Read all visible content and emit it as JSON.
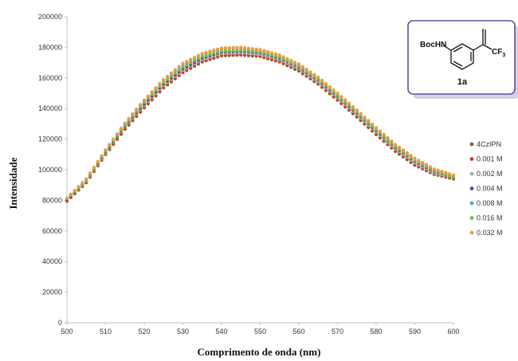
{
  "chart_data": {
    "type": "scatter",
    "xlabel": "Comprimento de onda (nm)",
    "ylabel": "Intensidade",
    "xlim": [
      500,
      600
    ],
    "ylim": [
      0,
      200000
    ],
    "x_ticks": [
      500,
      510,
      520,
      530,
      540,
      550,
      560,
      570,
      580,
      590,
      600
    ],
    "y_ticks": [
      0,
      20000,
      40000,
      60000,
      80000,
      100000,
      120000,
      140000,
      160000,
      180000,
      200000
    ],
    "x_step": 1,
    "grid": false,
    "legend_position": "right",
    "series": [
      {
        "name": "4CzIPN",
        "color": "#7a6a2a",
        "x": [
          500,
          505,
          510,
          515,
          520,
          525,
          530,
          535,
          540,
          545,
          550,
          555,
          560,
          565,
          570,
          575,
          580,
          585,
          590,
          595,
          600
        ],
        "values": [
          79500,
          91500,
          110000,
          126500,
          140500,
          153500,
          163500,
          170500,
          174500,
          175000,
          174000,
          170500,
          164500,
          156000,
          145500,
          134500,
          123000,
          112000,
          103000,
          97000,
          94000
        ]
      },
      {
        "name": "0.001 M",
        "color": "#cc3a1f",
        "x": [
          500,
          505,
          510,
          515,
          520,
          525,
          530,
          535,
          540,
          545,
          550,
          555,
          560,
          565,
          570,
          575,
          580,
          585,
          590,
          595,
          600
        ],
        "values": [
          80000,
          92000,
          110500,
          127000,
          141000,
          154000,
          164000,
          171000,
          175000,
          175500,
          174500,
          171000,
          165000,
          156500,
          146000,
          135000,
          123500,
          112500,
          103500,
          97500,
          94500
        ]
      },
      {
        "name": "0.002 M",
        "color": "#a9a9a9",
        "x": [
          500,
          505,
          510,
          515,
          520,
          525,
          530,
          535,
          540,
          545,
          550,
          555,
          560,
          565,
          570,
          575,
          580,
          585,
          590,
          595,
          600
        ],
        "values": [
          80500,
          92500,
          111000,
          128000,
          142000,
          155000,
          165000,
          172000,
          176000,
          176500,
          175500,
          172000,
          166000,
          157500,
          147000,
          136000,
          124500,
          113500,
          104500,
          98000,
          95000
        ]
      },
      {
        "name": "0.004 M",
        "color": "#6b3f8f",
        "x": [
          500,
          505,
          510,
          515,
          520,
          525,
          530,
          535,
          540,
          545,
          550,
          555,
          560,
          565,
          570,
          575,
          580,
          585,
          590,
          595,
          600
        ],
        "values": [
          80500,
          93000,
          111500,
          128500,
          143000,
          156000,
          166000,
          173000,
          177000,
          177500,
          176500,
          173000,
          167000,
          158500,
          148000,
          137000,
          125500,
          114500,
          105500,
          99000,
          95500
        ]
      },
      {
        "name": "0.008 M",
        "color": "#5aa0d8",
        "x": [
          500,
          505,
          510,
          515,
          520,
          525,
          530,
          535,
          540,
          545,
          550,
          555,
          560,
          565,
          570,
          575,
          580,
          585,
          590,
          595,
          600
        ],
        "values": [
          81000,
          93500,
          112500,
          130000,
          145000,
          158500,
          168500,
          175500,
          179000,
          179500,
          178000,
          174500,
          168500,
          160000,
          149500,
          138500,
          127000,
          116000,
          107000,
          100000,
          96000
        ]
      },
      {
        "name": "0.016 M",
        "color": "#6dbd45",
        "x": [
          500,
          505,
          510,
          515,
          520,
          525,
          530,
          535,
          540,
          545,
          550,
          555,
          560,
          565,
          570,
          575,
          580,
          585,
          590,
          595,
          600
        ],
        "values": [
          81000,
          93000,
          112000,
          129000,
          144000,
          157000,
          167000,
          174000,
          177500,
          178000,
          177000,
          173500,
          167500,
          159000,
          148500,
          137500,
          126000,
          115000,
          106000,
          99500,
          95500
        ]
      },
      {
        "name": "0.032 M",
        "color": "#f29a3a",
        "x": [
          500,
          505,
          510,
          515,
          520,
          525,
          530,
          535,
          540,
          545,
          550,
          555,
          560,
          565,
          570,
          575,
          580,
          585,
          590,
          595,
          600
        ],
        "values": [
          81500,
          94000,
          113000,
          130500,
          145500,
          159000,
          169500,
          176000,
          179500,
          180000,
          178500,
          175000,
          169000,
          160500,
          150000,
          139000,
          127500,
          116500,
          107500,
          100500,
          96500
        ]
      }
    ],
    "inset": {
      "label": "1a",
      "group_left": "BocHN",
      "group_right": "CF",
      "group_right_sub": "3",
      "border_color": "#6a4a9c"
    }
  }
}
